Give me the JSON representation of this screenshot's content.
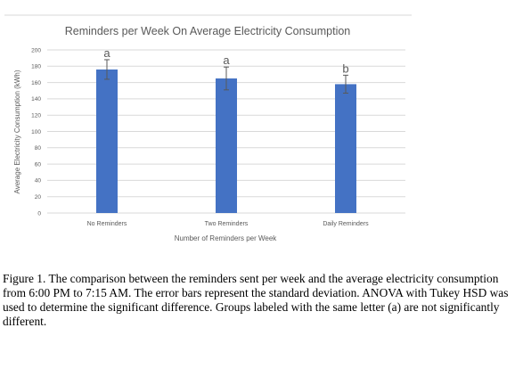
{
  "chart_data": {
    "type": "bar",
    "title": "Reminders per Week On Average Electricity Consumption",
    "xlabel": "Number of Reminders per Week",
    "ylabel": "Average Electricity Consumption (kWh)",
    "categories": [
      "No Reminders",
      "Two Reminders",
      "Daily Reminders"
    ],
    "values": [
      176,
      165,
      158
    ],
    "error": [
      12,
      14,
      11
    ],
    "group_letters": [
      "a",
      "a",
      "b"
    ],
    "ylim": [
      0,
      200
    ],
    "yticks": [
      "0",
      "20",
      "40",
      "60",
      "80",
      "100",
      "120",
      "140",
      "160",
      "180",
      "200"
    ],
    "grid": true,
    "bar_color": "#4472c4",
    "grid_color": "#d9d9d9",
    "error_bar_color": "#595959"
  },
  "caption": "Figure 1. The comparison between the reminders sent per week and the average electricity consumption from 6:00 PM to 7:15 AM. The error bars represent the standard deviation. ANOVA with Tukey HSD was used to determine the significant difference. Groups labeled with the same letter (a) are not significantly different."
}
